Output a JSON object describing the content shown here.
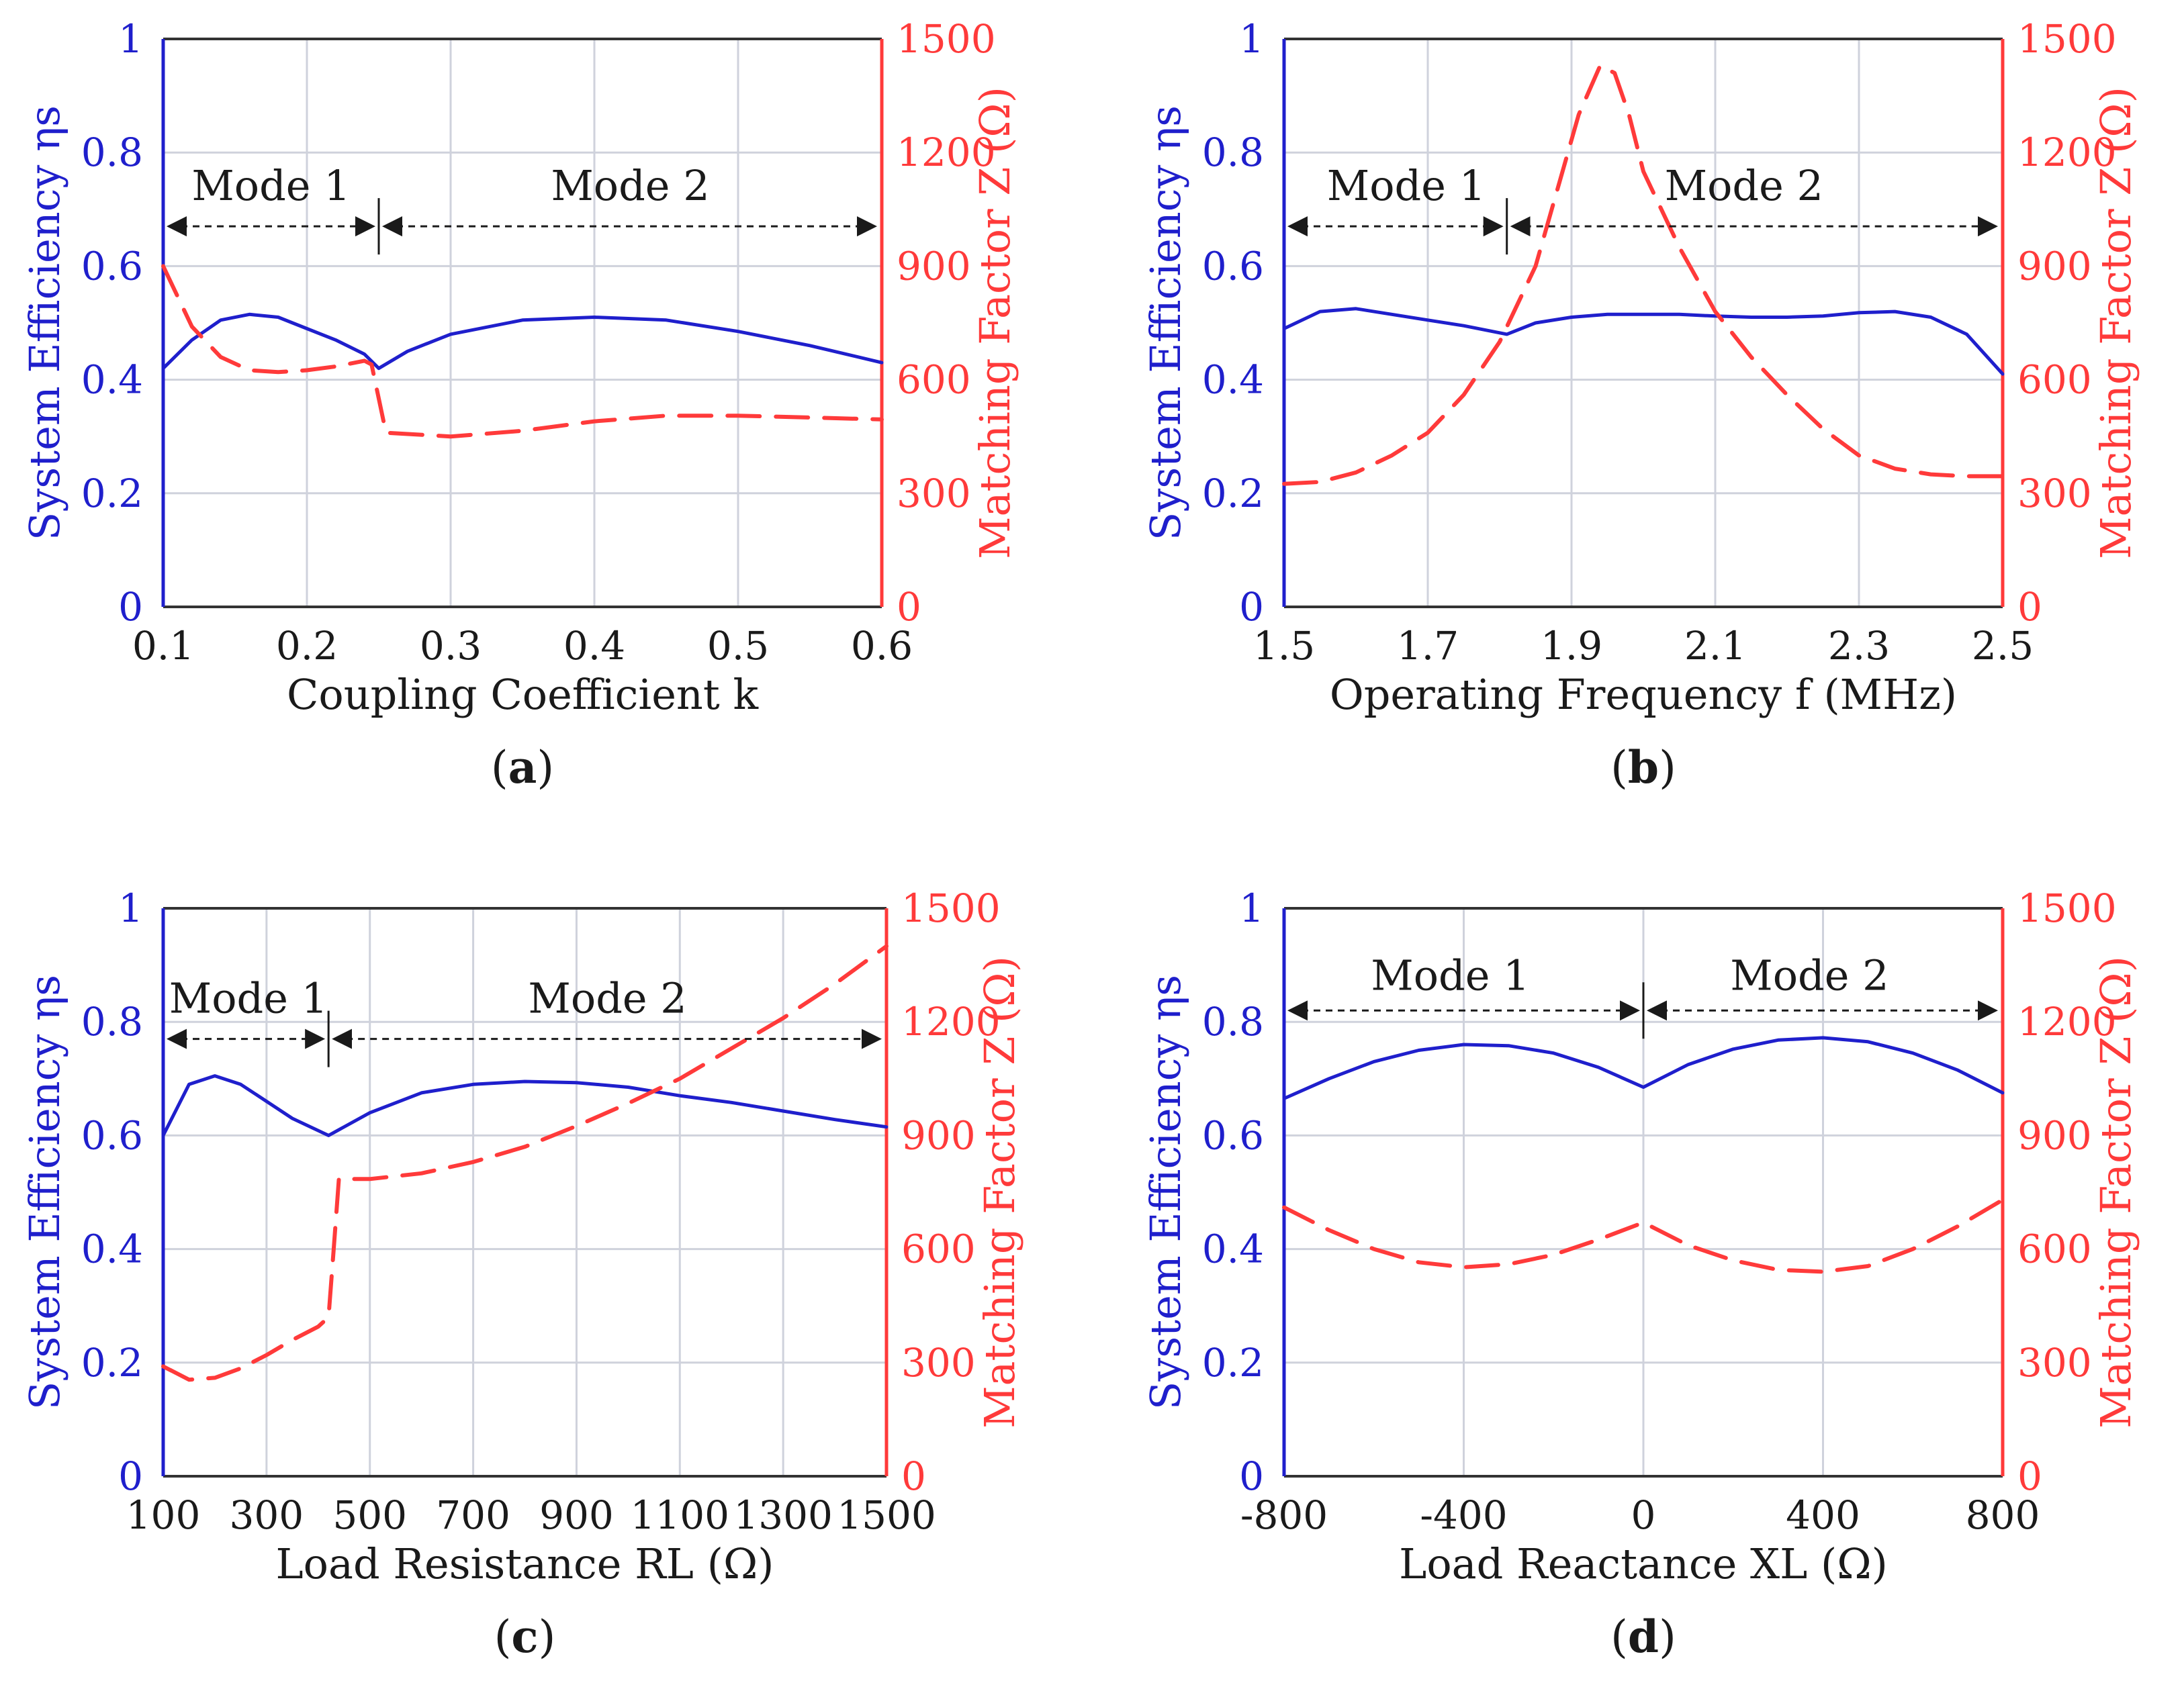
{
  "colors": {
    "efficiency": "#1f1fcc",
    "matching": "#ff3a3a",
    "grid": "#cfd2dc",
    "frame": "#333333",
    "text": "#1a1a1a"
  },
  "chart_data": [
    {
      "type": "line",
      "panel_label": "a",
      "xlabel": "Coupling Coefficient k",
      "ylabel_left": "System Efficiency ηs",
      "ylabel_right": "Matching Factor Z (Ω)",
      "xlim": [
        0.1,
        0.6
      ],
      "ylim_left": [
        0,
        1
      ],
      "ylim_right": [
        0,
        1500
      ],
      "xticks": [
        0.1,
        0.2,
        0.3,
        0.4,
        0.5,
        0.6
      ],
      "xtick_labels": [
        "0.1",
        "0.2",
        "0.3",
        "0.4",
        "0.5",
        "0.6"
      ],
      "yticks_left": [
        "0",
        "0.2",
        "0.4",
        "0.6",
        "0.8",
        "1"
      ],
      "yticks_right": [
        "0",
        "300",
        "600",
        "900",
        "1200",
        "1500"
      ],
      "mode_boundary": 0.25,
      "mode_arrow_y": 0.67,
      "modes": [
        {
          "label": "Mode 1",
          "x": 0.175,
          "y": 0.74
        },
        {
          "label": "Mode 2",
          "x": 0.425,
          "y": 0.74
        }
      ],
      "series": [
        {
          "axis": "left",
          "style": "solid",
          "x": [
            0.1,
            0.12,
            0.14,
            0.16,
            0.18,
            0.2,
            0.22,
            0.24,
            0.25,
            0.27,
            0.3,
            0.35,
            0.4,
            0.45,
            0.5,
            0.55,
            0.6
          ],
          "y": [
            0.42,
            0.47,
            0.505,
            0.515,
            0.51,
            0.49,
            0.47,
            0.445,
            0.42,
            0.45,
            0.48,
            0.505,
            0.51,
            0.505,
            0.485,
            0.46,
            0.43
          ]
        },
        {
          "axis": "right",
          "style": "dashed",
          "x": [
            0.1,
            0.12,
            0.14,
            0.16,
            0.18,
            0.2,
            0.22,
            0.24,
            0.245,
            0.25,
            0.255,
            0.3,
            0.35,
            0.4,
            0.45,
            0.5,
            0.55,
            0.6
          ],
          "y": [
            900,
            740,
            660,
            625,
            620,
            625,
            635,
            650,
            640,
            550,
            460,
            450,
            465,
            490,
            505,
            505,
            500,
            495
          ]
        }
      ]
    },
    {
      "type": "line",
      "panel_label": "b",
      "xlabel": "Operating Frequency f (MHz)",
      "ylabel_left": "System Efficiency ηs",
      "ylabel_right": "Matching Factor Z (Ω)",
      "xlim": [
        1.5,
        2.5
      ],
      "ylim_left": [
        0,
        1
      ],
      "ylim_right": [
        0,
        1500
      ],
      "xticks": [
        1.5,
        1.7,
        1.9,
        2.1,
        2.3,
        2.5
      ],
      "xtick_labels": [
        "1.5",
        "1.7",
        "1.9",
        "2.1",
        "2.3",
        "2.5"
      ],
      "yticks_left": [
        "0",
        "0.2",
        "0.4",
        "0.6",
        "0.8",
        "1"
      ],
      "yticks_right": [
        "0",
        "300",
        "600",
        "900",
        "1200",
        "1500"
      ],
      "mode_boundary": 1.81,
      "mode_arrow_y": 0.67,
      "modes": [
        {
          "label": "Mode 1",
          "x": 1.67,
          "y": 0.74
        },
        {
          "label": "Mode 2",
          "x": 2.14,
          "y": 0.74
        }
      ],
      "series": [
        {
          "axis": "left",
          "style": "solid",
          "x": [
            1.5,
            1.55,
            1.6,
            1.65,
            1.7,
            1.75,
            1.81,
            1.85,
            1.9,
            1.95,
            2.0,
            2.05,
            2.1,
            2.15,
            2.2,
            2.25,
            2.3,
            2.35,
            2.4,
            2.45,
            2.5
          ],
          "y": [
            0.49,
            0.52,
            0.525,
            0.515,
            0.505,
            0.495,
            0.48,
            0.5,
            0.51,
            0.515,
            0.515,
            0.515,
            0.512,
            0.51,
            0.51,
            0.512,
            0.518,
            0.52,
            0.51,
            0.48,
            0.41
          ]
        },
        {
          "axis": "right",
          "style": "dashed",
          "x": [
            1.5,
            1.55,
            1.6,
            1.65,
            1.7,
            1.75,
            1.8,
            1.85,
            1.88,
            1.91,
            1.94,
            1.96,
            1.98,
            2.0,
            2.05,
            2.1,
            2.15,
            2.2,
            2.25,
            2.3,
            2.35,
            2.4,
            2.45,
            2.5
          ],
          "y": [
            325,
            330,
            355,
            400,
            460,
            560,
            700,
            900,
            1100,
            1300,
            1430,
            1410,
            1300,
            1150,
            950,
            780,
            660,
            560,
            470,
            400,
            365,
            350,
            345,
            345
          ]
        }
      ]
    },
    {
      "type": "line",
      "panel_label": "c",
      "xlabel": "Load Resistance RL (Ω)",
      "ylabel_left": "System Efficiency ηs",
      "ylabel_right": "Matching Factor Z (Ω)",
      "xlim": [
        100,
        1500
      ],
      "ylim_left": [
        0,
        1
      ],
      "ylim_right": [
        0,
        1500
      ],
      "xticks": [
        100,
        300,
        500,
        700,
        900,
        1100,
        1300,
        1500
      ],
      "xtick_labels": [
        "100",
        "300",
        "500",
        "700",
        "900",
        "1100",
        "1300",
        "1500"
      ],
      "yticks_left": [
        "0",
        "0.2",
        "0.4",
        "0.6",
        "0.8",
        "1"
      ],
      "yticks_right": [
        "0",
        "300",
        "600",
        "900",
        "1200",
        "1500"
      ],
      "mode_boundary": 420,
      "mode_arrow_y": 0.77,
      "modes": [
        {
          "label": "Mode 1",
          "x": 265,
          "y": 0.84
        },
        {
          "label": "Mode 2",
          "x": 960,
          "y": 0.84
        }
      ],
      "series": [
        {
          "axis": "left",
          "style": "solid",
          "x": [
            100,
            150,
            200,
            250,
            300,
            350,
            420,
            500,
            600,
            700,
            800,
            900,
            1000,
            1100,
            1200,
            1300,
            1400,
            1500
          ],
          "y": [
            0.6,
            0.69,
            0.705,
            0.69,
            0.66,
            0.63,
            0.6,
            0.64,
            0.675,
            0.69,
            0.695,
            0.693,
            0.685,
            0.67,
            0.658,
            0.643,
            0.628,
            0.615
          ]
        },
        {
          "axis": "right",
          "style": "dashed",
          "x": [
            100,
            150,
            200,
            250,
            300,
            350,
            400,
            420,
            430,
            440,
            500,
            600,
            700,
            800,
            900,
            1000,
            1100,
            1200,
            1300,
            1400,
            1500
          ],
          "y": [
            290,
            255,
            260,
            285,
            320,
            360,
            395,
            420,
            600,
            785,
            785,
            800,
            830,
            870,
            925,
            985,
            1050,
            1130,
            1210,
            1300,
            1400
          ]
        }
      ]
    },
    {
      "type": "line",
      "panel_label": "d",
      "xlabel": "Load Reactance XL (Ω)",
      "ylabel_left": "System Efficiency ηs",
      "ylabel_right": "Matching Factor Z (Ω)",
      "xlim": [
        -800,
        800
      ],
      "ylim_left": [
        0,
        1
      ],
      "ylim_right": [
        0,
        1500
      ],
      "xticks": [
        -800,
        -400,
        0,
        400,
        800
      ],
      "xtick_labels": [
        "-800",
        "-400",
        "0",
        "400",
        "800"
      ],
      "yticks_left": [
        "0",
        "0.2",
        "0.4",
        "0.6",
        "0.8",
        "1"
      ],
      "yticks_right": [
        "0",
        "300",
        "600",
        "900",
        "1200",
        "1500"
      ],
      "mode_boundary": 0,
      "mode_arrow_y": 0.82,
      "modes": [
        {
          "label": "Mode 1",
          "x": -430,
          "y": 0.88
        },
        {
          "label": "Mode 2",
          "x": 370,
          "y": 0.88
        }
      ],
      "series": [
        {
          "axis": "left",
          "style": "solid",
          "x": [
            -800,
            -700,
            -600,
            -500,
            -400,
            -300,
            -200,
            -100,
            0,
            100,
            200,
            300,
            400,
            500,
            600,
            700,
            800
          ],
          "y": [
            0.665,
            0.7,
            0.73,
            0.75,
            0.76,
            0.758,
            0.745,
            0.72,
            0.685,
            0.725,
            0.752,
            0.768,
            0.772,
            0.765,
            0.745,
            0.715,
            0.675
          ]
        },
        {
          "axis": "right",
          "style": "dashed",
          "x": [
            -800,
            -700,
            -600,
            -500,
            -400,
            -300,
            -200,
            -100,
            0,
            100,
            200,
            300,
            400,
            500,
            600,
            700,
            800
          ],
          "y": [
            710,
            650,
            600,
            565,
            552,
            560,
            585,
            625,
            670,
            610,
            570,
            545,
            540,
            555,
            600,
            660,
            730
          ]
        }
      ]
    }
  ]
}
